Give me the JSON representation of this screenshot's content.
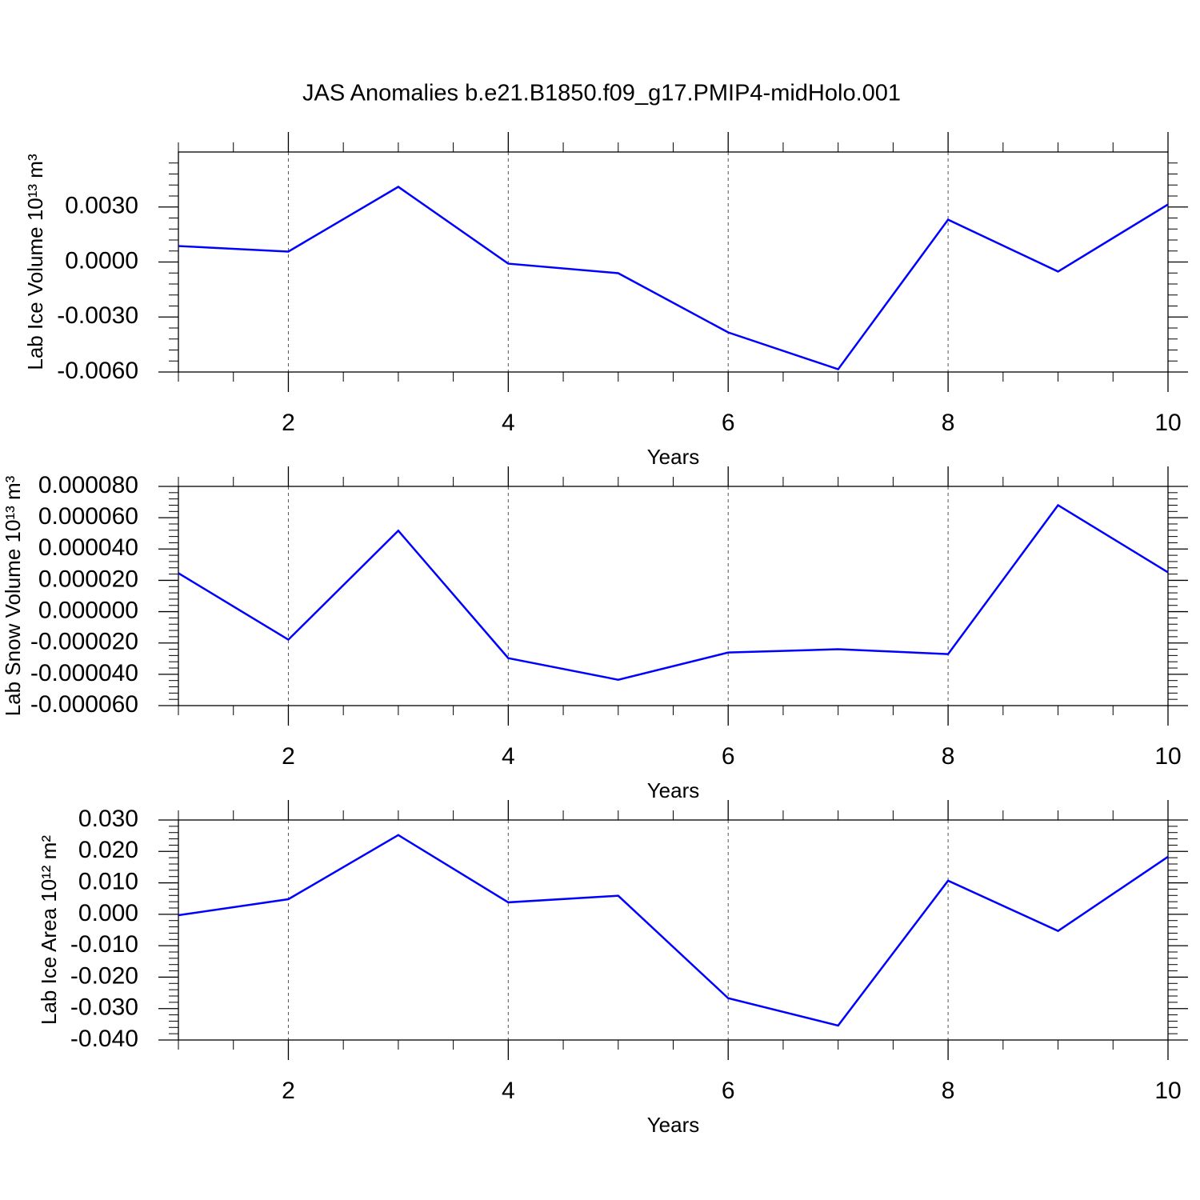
{
  "title": "JAS Anomalies b.e21.B1850.f09_g17.PMIP4-midHolo.001",
  "chart_data": [
    {
      "type": "line",
      "xlabel": "Years",
      "ylabel": "Lab Ice Volume 10¹³ m³",
      "x": [
        1,
        2,
        3,
        4,
        5,
        6,
        7,
        8,
        9,
        10
      ],
      "series": [
        {
          "color": "#0000ff",
          "values": [
            0.00087,
            0.00057,
            0.0041,
            -9e-05,
            -0.00061,
            -0.00384,
            -0.00585,
            0.00231,
            -0.00052,
            0.00314
          ]
        }
      ],
      "xlim": [
        1,
        10
      ],
      "xticks": [
        2,
        4,
        6,
        8,
        10
      ],
      "ylim": [
        -0.006,
        0.006
      ],
      "yticks": [
        {
          "value": -0.006,
          "label": "-0.0060"
        },
        {
          "value": -0.003,
          "label": "-0.0030"
        },
        {
          "value": 0,
          "label": "0.0000"
        },
        {
          "value": 0.003,
          "label": "0.0030"
        }
      ],
      "grid": true
    },
    {
      "type": "line",
      "xlabel": "Years",
      "ylabel": "Lab Snow Volume 10¹³ m³",
      "x": [
        1,
        2,
        3,
        4,
        5,
        6,
        7,
        8,
        9,
        10
      ],
      "series": [
        {
          "color": "#0000ff",
          "values": [
            2.46e-05,
            -1.79e-05,
            5.17e-05,
            -2.97e-05,
            -4.35e-05,
            -2.61e-05,
            -2.4e-05,
            -2.71e-05,
            6.8e-05,
            2.51e-05
          ]
        }
      ],
      "xlim": [
        1,
        10
      ],
      "xticks": [
        2,
        4,
        6,
        8,
        10
      ],
      "ylim": [
        -6e-05,
        8e-05
      ],
      "yticks": [
        {
          "value": -6e-05,
          "label": "-0.000060"
        },
        {
          "value": -4e-05,
          "label": "-0.000040"
        },
        {
          "value": -2e-05,
          "label": "-0.000020"
        },
        {
          "value": 0,
          "label": "0.000000"
        },
        {
          "value": 2e-05,
          "label": "0.000020"
        },
        {
          "value": 4e-05,
          "label": "0.000040"
        },
        {
          "value": 6e-05,
          "label": "0.000060"
        },
        {
          "value": 8e-05,
          "label": "0.000080"
        }
      ],
      "grid": true
    },
    {
      "type": "line",
      "xlabel": "Years",
      "ylabel": "Lab Ice Area 10¹² m²",
      "x": [
        1,
        2,
        3,
        4,
        5,
        6,
        7,
        8,
        9,
        10
      ],
      "series": [
        {
          "color": "#0000ff",
          "values": [
            -0.0003,
            0.0048,
            0.0252,
            0.0038,
            0.0059,
            -0.0267,
            -0.0354,
            0.0107,
            -0.0053,
            0.0183
          ]
        }
      ],
      "xlim": [
        1,
        10
      ],
      "xticks": [
        2,
        4,
        6,
        8,
        10
      ],
      "ylim": [
        -0.04,
        0.03
      ],
      "yticks": [
        {
          "value": -0.04,
          "label": "-0.040"
        },
        {
          "value": -0.03,
          "label": "-0.030"
        },
        {
          "value": -0.02,
          "label": "-0.020"
        },
        {
          "value": -0.01,
          "label": "-0.010"
        },
        {
          "value": 0,
          "label": "0.000"
        },
        {
          "value": 0.01,
          "label": "0.010"
        },
        {
          "value": 0.02,
          "label": "0.020"
        },
        {
          "value": 0.03,
          "label": "0.030"
        }
      ],
      "grid": true
    }
  ]
}
